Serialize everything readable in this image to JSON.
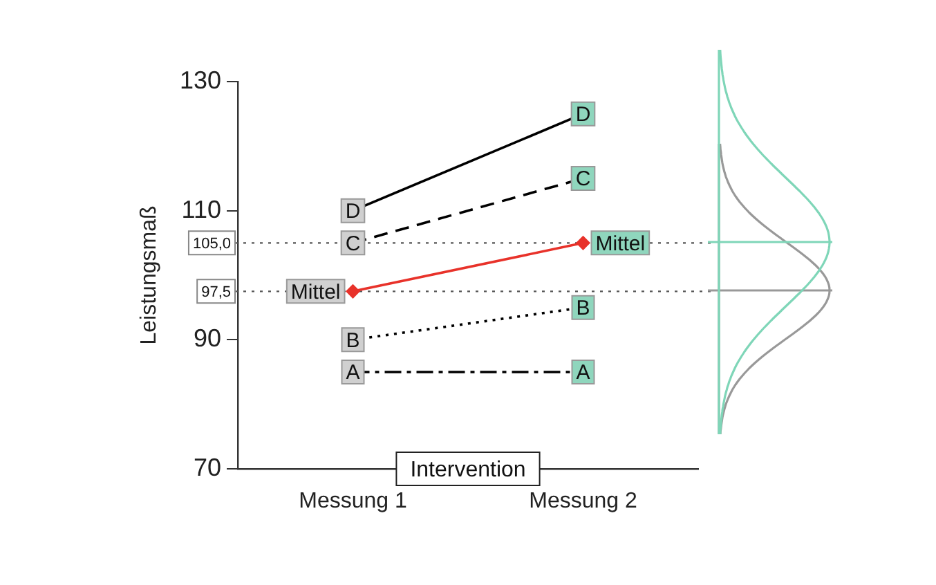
{
  "chart_data": {
    "type": "line",
    "ylabel": "Leistungsmaß",
    "categories": [
      "Messung 1",
      "Messung 2"
    ],
    "series": [
      {
        "name": "D",
        "color": "#000000",
        "values": [
          110,
          125
        ],
        "line_style": "solid",
        "marker": "square"
      },
      {
        "name": "C",
        "color": "#000000",
        "values": [
          105,
          115
        ],
        "line_style": "dashed",
        "marker": "square"
      },
      {
        "name": "Mittel",
        "color": "#e8322a",
        "values": [
          97.5,
          105
        ],
        "line_style": "solid",
        "marker": "diamond"
      },
      {
        "name": "B",
        "color": "#000000",
        "values": [
          90,
          95
        ],
        "line_style": "dotted",
        "marker": "square"
      },
      {
        "name": "A",
        "color": "#000000",
        "values": [
          85,
          85
        ],
        "line_style": "dashdot",
        "marker": "square"
      }
    ],
    "ylim": [
      70,
      130
    ],
    "yticks": [
      70,
      90,
      110,
      130
    ],
    "grid": false,
    "legend": false,
    "ref_lines": [
      {
        "axis": "y",
        "value": 105,
        "label": "105,0",
        "color": "#555555",
        "line_style": "dotted"
      },
      {
        "axis": "y",
        "value": 97.5,
        "label": "97,5",
        "color": "#555555",
        "line_style": "dotted"
      }
    ],
    "annotations": [
      "Intervention"
    ]
  }
}
